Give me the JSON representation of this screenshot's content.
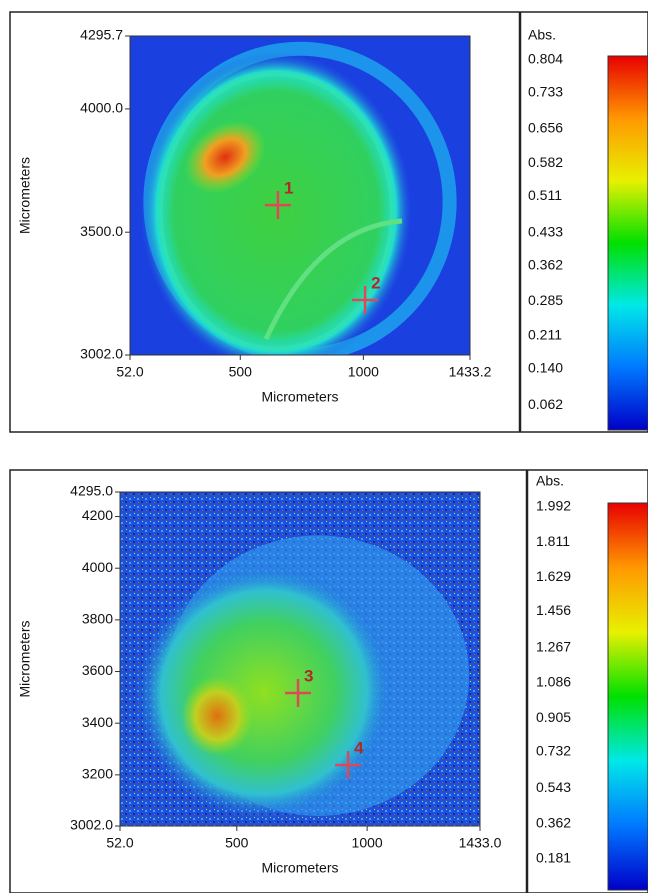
{
  "chart_data": [
    {
      "type": "heatmap",
      "xlabel": "Micrometers",
      "ylabel": "Micrometers",
      "xlim": [
        52,
        1433.2
      ],
      "xticks": [
        {
          "value": 52,
          "label": "52.0"
        },
        500,
        1000,
        1433.2
      ],
      "ylim": [
        3002,
        4295.7
      ],
      "yticks": [
        4295.7,
        {
          "value": 4000,
          "label": "4000.0"
        },
        {
          "value": 3500,
          "label": "3500.0"
        },
        {
          "value": 3002,
          "label": "3002.0"
        }
      ],
      "colorbar_label": "Abs.",
      "clim": [
        0,
        0.804
      ],
      "colorbar_ticks": [
        0.804,
        0.733,
        0.656,
        0.582,
        0.511,
        0.433,
        0.362,
        0.285,
        0.211,
        {
          "value": 0.14,
          "label": "0.140"
        },
        0.062
      ],
      "colors": [
        "#0000c8",
        "#0078ff",
        "#00e8e8",
        "#00e000",
        "#e8f000",
        "#ff9800",
        "#e80000"
      ],
      "annotations": [
        {
          "label": "1",
          "x": 653,
          "y": 3610
        },
        {
          "label": "2",
          "x": 1007,
          "y": 3225
        }
      ]
    },
    {
      "type": "heatmap",
      "xlabel": "Micrometers",
      "ylabel": "Micrometers",
      "xlim": [
        52,
        1433
      ],
      "xticks": [
        {
          "value": 52,
          "label": "52.0"
        },
        500,
        1000,
        {
          "value": 1433,
          "label": "1433.0"
        }
      ],
      "ylim": [
        3002,
        4295
      ],
      "yticks": [
        {
          "value": 4295,
          "label": "4295.0"
        },
        4200,
        4000,
        3800,
        3600,
        3400,
        3200,
        {
          "value": 3002,
          "label": "3002.0"
        }
      ],
      "colorbar_label": "Abs.",
      "clim": [
        0,
        1.992
      ],
      "colorbar_ticks": [
        1.992,
        1.811,
        1.629,
        1.456,
        1.267,
        1.086,
        0.905,
        0.732,
        0.543,
        0.362,
        0.181
      ],
      "colors": [
        "#0000c8",
        "#0078ff",
        "#00e8e8",
        "#00e000",
        "#e8f000",
        "#ff9800",
        "#e80000"
      ],
      "annotations": [
        {
          "label": "3",
          "x": 735,
          "y": 3517
        },
        {
          "label": "4",
          "x": 927,
          "y": 3238
        }
      ]
    }
  ]
}
